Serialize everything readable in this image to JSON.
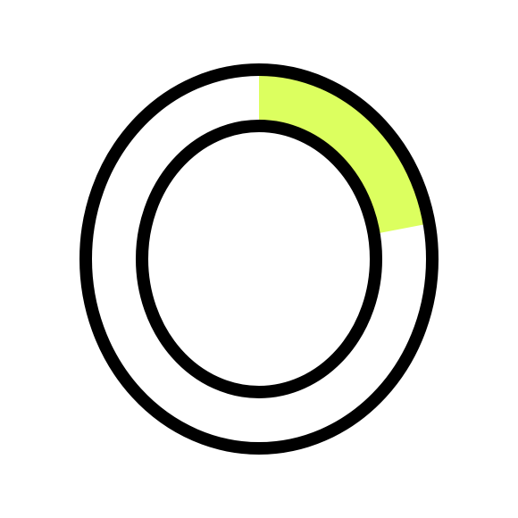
{
  "progress_ring": {
    "icon": "circular-progress-ring",
    "progress_fraction": 0.22,
    "colors": {
      "fill": "#dcff5f",
      "track": "#ffffff",
      "stroke": "#000000",
      "background": "#ffffff"
    }
  }
}
